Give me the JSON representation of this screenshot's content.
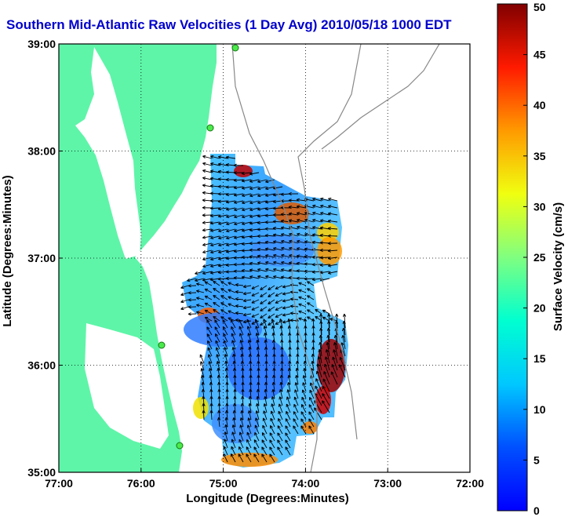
{
  "title": "Southern Mid-Atlantic Raw Velocities (1 Day Avg) 2010/05/18 1000 EDT",
  "title_color": "#0000cc",
  "map": {
    "x_label": "Longitude (Degrees:Minutes)",
    "y_label": "Latitude (Degrees:Minutes)",
    "x_ticks": [
      "77:00",
      "76:00",
      "75:00",
      "74:00",
      "73:00",
      "72:00"
    ],
    "y_ticks": [
      "39:00",
      "38:00",
      "37:00",
      "36:00",
      "35:00"
    ],
    "land_color": "#5ef5a8",
    "grid": "dotted"
  },
  "colorbar": {
    "label": "Surface Velocity (cm/s)",
    "ticks": [
      "0",
      "5",
      "10",
      "15",
      "20",
      "25",
      "30",
      "35",
      "40",
      "45",
      "50"
    ],
    "min": 0,
    "max": 50
  }
}
